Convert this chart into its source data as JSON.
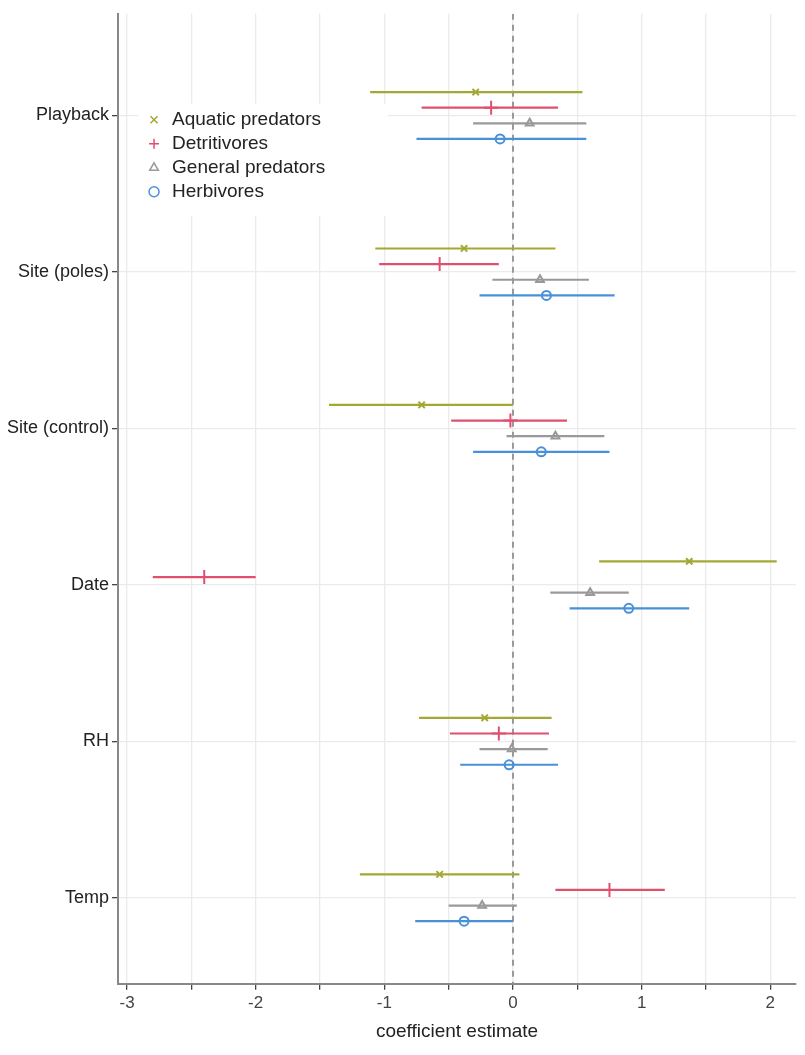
{
  "chart_data": {
    "type": "scatter",
    "orientation": "horizontal",
    "xlabel": "coefficient estimate",
    "categories": [
      "Playback",
      "Site (poles)",
      "Site (control)",
      "Date",
      "RH",
      "Temp"
    ],
    "series": [
      {
        "name": "Aquatic predators",
        "color": "#a3a832",
        "marker": "cross",
        "values": [
          -0.29,
          -0.38,
          -0.71,
          1.37,
          -0.22,
          -0.57
        ],
        "errors": [
          [
            -1.11,
            0.54
          ],
          [
            -1.07,
            0.33
          ],
          [
            -1.43,
            0.0
          ],
          [
            0.67,
            2.05
          ],
          [
            -0.73,
            0.3
          ],
          [
            -1.19,
            0.05
          ]
        ]
      },
      {
        "name": "Detritivores",
        "color": "#e0506e",
        "marker": "plus",
        "values": [
          -0.17,
          -0.57,
          -0.02,
          -2.4,
          -0.11,
          0.75
        ],
        "errors": [
          [
            -0.71,
            0.35
          ],
          [
            -1.04,
            -0.11
          ],
          [
            -0.48,
            0.42
          ],
          [
            -2.8,
            -2.0
          ],
          [
            -0.49,
            0.28
          ],
          [
            0.33,
            1.18
          ]
        ]
      },
      {
        "name": "General predators",
        "color": "#999999",
        "marker": "triangle",
        "values": [
          0.13,
          0.21,
          0.33,
          0.6,
          -0.01,
          -0.24
        ],
        "errors": [
          [
            -0.31,
            0.57
          ],
          [
            -0.16,
            0.59
          ],
          [
            -0.05,
            0.71
          ],
          [
            0.29,
            0.9
          ],
          [
            -0.26,
            0.27
          ],
          [
            -0.5,
            0.03
          ]
        ]
      },
      {
        "name": "Herbivores",
        "color": "#4a90d9",
        "marker": "circle",
        "values": [
          -0.1,
          0.26,
          0.22,
          0.9,
          -0.03,
          -0.38
        ],
        "errors": [
          [
            -0.75,
            0.57
          ],
          [
            -0.26,
            0.79
          ],
          [
            -0.31,
            0.75
          ],
          [
            0.44,
            1.37
          ],
          [
            -0.41,
            0.35
          ],
          [
            -0.76,
            0.0
          ]
        ]
      }
    ],
    "xlim": [
      -3.07,
      2.2
    ],
    "xticks": [
      -3,
      {
        "value": -2.5,
        "label": null
      },
      -2,
      {
        "value": -1.5,
        "label": null
      },
      -1,
      {
        "value": -0.5,
        "label": null
      },
      0,
      {
        "value": 0.5,
        "label": null
      },
      1,
      {
        "value": 1.5,
        "label": null
      },
      2
    ],
    "grid": true,
    "legend": "top left",
    "ref_lines": [
      {
        "axis": "x",
        "value": 0,
        "label": null,
        "color": "#999999",
        "line_style": "dashed"
      }
    ]
  }
}
